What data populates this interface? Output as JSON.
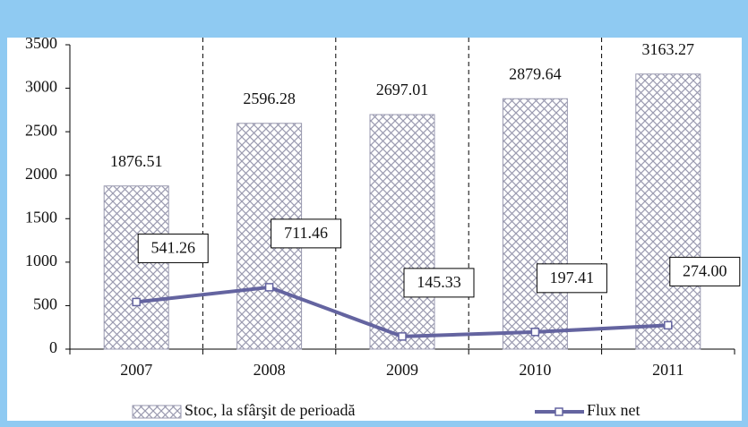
{
  "chart_data": {
    "type": "bar-line",
    "categories": [
      "2007",
      "2008",
      "2009",
      "2010",
      "2011"
    ],
    "series": [
      {
        "name": "Stoc, la sfârşit de perioadă",
        "type": "bar",
        "color": "#9a9ab0",
        "values": [
          1876.51,
          2596.28,
          2697.01,
          2879.64,
          3163.27
        ]
      },
      {
        "name": "Flux net",
        "type": "line",
        "color": "#6464a0",
        "values": [
          541.26,
          711.46,
          145.33,
          197.41,
          274.0
        ],
        "value_labels": [
          "541.26",
          "711.46",
          "145.33",
          "197.41",
          "274.00"
        ]
      }
    ],
    "ylim": [
      0,
      3500
    ],
    "yticks": [
      0,
      500,
      1000,
      1500,
      2000,
      2500,
      3000,
      3500
    ]
  }
}
